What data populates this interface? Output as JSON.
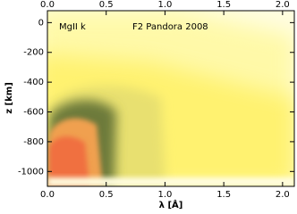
{
  "chart_data": {
    "type": "heatmap",
    "annotations": [
      "MgII k",
      "F2 Pandora 2008"
    ],
    "xlabel": "λ [Å]",
    "ylabel": "z [km]",
    "xlim": [
      0,
      2.1
    ],
    "ylim": [
      -1100,
      80
    ],
    "xticks": [
      {
        "value": 0,
        "label": "0.0"
      },
      0.5,
      {
        "value": 1,
        "label": "1.0"
      },
      1.5,
      {
        "value": 2,
        "label": "2.0"
      }
    ],
    "yticks": [
      0,
      -200,
      -400,
      -600,
      -800,
      -1000
    ]
  }
}
